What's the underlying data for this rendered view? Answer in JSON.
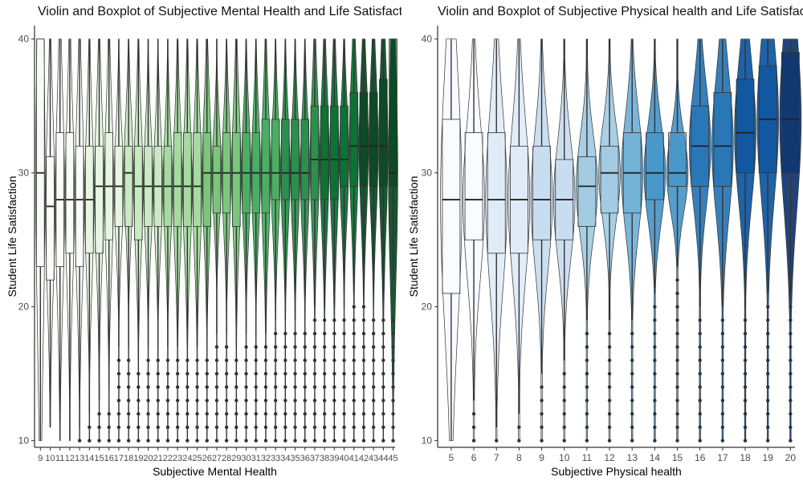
{
  "chart_data": [
    {
      "type": "violin-boxplot",
      "title": "Violin and Boxplot of Subjective Mental Health and Life Satisfaction",
      "xlabel": "Subjective Mental Health",
      "ylabel": "Student Life Satisfaction",
      "ylim": [
        9.5,
        41
      ],
      "yticks": [
        10,
        20,
        30,
        40
      ],
      "grid": false,
      "legend": "none",
      "palette": "greens",
      "colors": [
        "#f7fcf5",
        "#e5f5e0",
        "#c7e9c0",
        "#a1d99b",
        "#74c476",
        "#41ab5d",
        "#238b45",
        "#006d2c",
        "#00441b"
      ],
      "categories": [
        "9",
        "10",
        "11",
        "12",
        "13",
        "14",
        "15",
        "16",
        "17",
        "18",
        "19",
        "20",
        "21",
        "22",
        "23",
        "24",
        "25",
        "26",
        "27",
        "28",
        "29",
        "30",
        "31",
        "32",
        "33",
        "34",
        "35",
        "36",
        "37",
        "38",
        "39",
        "40",
        "41",
        "42",
        "43",
        "44",
        "45"
      ],
      "boxes": [
        {
          "q1": 23,
          "median": 30,
          "q3": 40,
          "lo": 10,
          "hi": 40,
          "outliers": []
        },
        {
          "q1": 22,
          "median": 27.5,
          "q3": 31.2,
          "lo": 11,
          "hi": 40,
          "outliers": []
        },
        {
          "q1": 23,
          "median": 28,
          "q3": 33,
          "lo": 10,
          "hi": 40,
          "outliers": []
        },
        {
          "q1": 24,
          "median": 28,
          "q3": 33,
          "lo": 10,
          "hi": 40,
          "outliers": []
        },
        {
          "q1": 23,
          "median": 28,
          "q3": 32,
          "lo": 11,
          "hi": 40,
          "outliers": [
            10
          ]
        },
        {
          "q1": 24,
          "median": 28,
          "q3": 32,
          "lo": 12,
          "hi": 40,
          "outliers": [
            10,
            11
          ]
        },
        {
          "q1": 24,
          "median": 29,
          "q3": 32,
          "lo": 13,
          "hi": 40,
          "outliers": [
            10,
            11,
            12
          ]
        },
        {
          "q1": 25,
          "median": 29,
          "q3": 33,
          "lo": 14,
          "hi": 40,
          "outliers": [
            10,
            11,
            12
          ]
        },
        {
          "q1": 26,
          "median": 29,
          "q3": 32,
          "lo": 17,
          "hi": 40,
          "outliers": [
            10,
            11,
            12,
            13,
            14,
            15,
            16
          ]
        },
        {
          "q1": 26,
          "median": 30,
          "q3": 32,
          "lo": 17,
          "hi": 40,
          "outliers": [
            10,
            11,
            12,
            13,
            14,
            15,
            16
          ]
        },
        {
          "q1": 25,
          "median": 29,
          "q3": 32,
          "lo": 16,
          "hi": 40,
          "outliers": [
            10,
            11,
            12,
            13,
            14,
            15
          ]
        },
        {
          "q1": 26,
          "median": 29,
          "q3": 32,
          "lo": 17,
          "hi": 40,
          "outliers": [
            10,
            11,
            12,
            13,
            14,
            15,
            16
          ]
        },
        {
          "q1": 26,
          "median": 29,
          "q3": 32,
          "lo": 17,
          "hi": 40,
          "outliers": [
            10,
            11,
            12,
            13,
            14,
            15,
            16
          ]
        },
        {
          "q1": 26,
          "median": 29,
          "q3": 32,
          "lo": 17,
          "hi": 40,
          "outliers": [
            10,
            11,
            12,
            13,
            14,
            15,
            16
          ]
        },
        {
          "q1": 26,
          "median": 29,
          "q3": 33,
          "lo": 17,
          "hi": 40,
          "outliers": [
            10,
            11,
            12,
            13,
            14,
            15,
            16
          ]
        },
        {
          "q1": 26,
          "median": 29,
          "q3": 33,
          "lo": 17,
          "hi": 40,
          "outliers": [
            10,
            11,
            12,
            13,
            14,
            15,
            16
          ]
        },
        {
          "q1": 26,
          "median": 29,
          "q3": 33,
          "lo": 17,
          "hi": 40,
          "outliers": [
            10,
            11,
            12,
            13,
            14,
            15,
            16
          ]
        },
        {
          "q1": 26,
          "median": 30,
          "q3": 33,
          "lo": 17,
          "hi": 40,
          "outliers": [
            10,
            11,
            12,
            13,
            14,
            15,
            16
          ]
        },
        {
          "q1": 27,
          "median": 30,
          "q3": 32,
          "lo": 18,
          "hi": 40,
          "outliers": [
            10,
            11,
            12,
            13,
            14,
            15,
            16,
            17
          ]
        },
        {
          "q1": 27,
          "median": 30,
          "q3": 33,
          "lo": 18,
          "hi": 40,
          "outliers": [
            10,
            11,
            12,
            13,
            14,
            15,
            16,
            17
          ]
        },
        {
          "q1": 26,
          "median": 30,
          "q3": 33,
          "lo": 17,
          "hi": 40,
          "outliers": [
            10,
            11,
            12,
            13,
            14,
            15,
            16
          ]
        },
        {
          "q1": 27,
          "median": 30,
          "q3": 33,
          "lo": 18,
          "hi": 40,
          "outliers": [
            10,
            11,
            12,
            13,
            14,
            15,
            16,
            17
          ]
        },
        {
          "q1": 27,
          "median": 30,
          "q3": 33,
          "lo": 18,
          "hi": 40,
          "outliers": [
            10,
            11,
            12,
            13,
            14,
            15,
            16,
            17
          ]
        },
        {
          "q1": 27,
          "median": 30,
          "q3": 34,
          "lo": 18,
          "hi": 40,
          "outliers": [
            10,
            11,
            12,
            13,
            14,
            15,
            16,
            17
          ]
        },
        {
          "q1": 28,
          "median": 30,
          "q3": 34,
          "lo": 19,
          "hi": 40,
          "outliers": [
            10,
            11,
            12,
            13,
            14,
            15,
            16,
            17,
            18
          ]
        },
        {
          "q1": 28,
          "median": 30,
          "q3": 34,
          "lo": 19,
          "hi": 40,
          "outliers": [
            10,
            11,
            12,
            13,
            14,
            15,
            16,
            17,
            18
          ]
        },
        {
          "q1": 28,
          "median": 30,
          "q3": 34,
          "lo": 19,
          "hi": 40,
          "outliers": [
            10,
            11,
            12,
            13,
            14,
            15,
            16,
            17,
            18
          ]
        },
        {
          "q1": 28,
          "median": 30,
          "q3": 34,
          "lo": 19,
          "hi": 40,
          "outliers": [
            10,
            11,
            12,
            13,
            14,
            15,
            16,
            17,
            18
          ]
        },
        {
          "q1": 28,
          "median": 31,
          "q3": 35,
          "lo": 20,
          "hi": 40,
          "outliers": [
            10,
            11,
            12,
            13,
            14,
            15,
            16,
            17,
            18,
            19
          ]
        },
        {
          "q1": 28,
          "median": 31,
          "q3": 35,
          "lo": 20,
          "hi": 40,
          "outliers": [
            10,
            11,
            12,
            13,
            14,
            15,
            16,
            17,
            18,
            19
          ]
        },
        {
          "q1": 28,
          "median": 31,
          "q3": 35,
          "lo": 20,
          "hi": 40,
          "outliers": [
            10,
            11,
            12,
            13,
            14,
            15,
            16,
            17,
            18,
            19
          ]
        },
        {
          "q1": 29,
          "median": 31,
          "q3": 35,
          "lo": 20,
          "hi": 40,
          "outliers": [
            10,
            11,
            12,
            13,
            14,
            15,
            16,
            17,
            18,
            19
          ]
        },
        {
          "q1": 29,
          "median": 32,
          "q3": 36,
          "lo": 21,
          "hi": 40,
          "outliers": [
            10,
            11,
            12,
            13,
            14,
            15,
            16,
            17,
            18,
            19,
            20
          ]
        },
        {
          "q1": 29,
          "median": 32,
          "q3": 36,
          "lo": 21,
          "hi": 40,
          "outliers": [
            10,
            11,
            12,
            13,
            14,
            15,
            16,
            17,
            18,
            19,
            20
          ]
        },
        {
          "q1": 29,
          "median": 32,
          "q3": 36,
          "lo": 21,
          "hi": 40,
          "outliers": [
            10,
            11,
            12,
            13,
            14,
            15,
            16,
            17,
            18,
            19
          ]
        },
        {
          "q1": 29,
          "median": 32,
          "q3": 37,
          "lo": 21,
          "hi": 40,
          "outliers": [
            10,
            11,
            12,
            13,
            14,
            15,
            16,
            17,
            18,
            19
          ]
        },
        {
          "q1": 29,
          "median": 30,
          "q3": 40,
          "lo": 22,
          "hi": 40,
          "outliers": [
            10,
            11,
            12,
            13,
            14,
            15,
            16,
            17,
            18,
            19
          ]
        }
      ]
    },
    {
      "type": "violin-boxplot",
      "title": "Violin and Boxplot of Subjective Physical health and Life Satisfaction",
      "xlabel": "Subjective Physical health",
      "ylabel": "Student Life Satisfaction",
      "ylim": [
        9.5,
        41
      ],
      "yticks": [
        10,
        20,
        30,
        40
      ],
      "grid": false,
      "legend": "none",
      "palette": "blues",
      "colors": [
        "#f7fbff",
        "#deebf7",
        "#c6dbef",
        "#9ecae1",
        "#6baed6",
        "#4292c6",
        "#2171b5",
        "#08519c",
        "#08306b"
      ],
      "categories": [
        "5",
        "6",
        "7",
        "8",
        "9",
        "10",
        "11",
        "12",
        "13",
        "14",
        "15",
        "16",
        "17",
        "18",
        "19",
        "20"
      ],
      "boxes": [
        {
          "q1": 21,
          "median": 28,
          "q3": 34,
          "lo": 10,
          "hi": 40,
          "outliers": []
        },
        {
          "q1": 25,
          "median": 28,
          "q3": 33,
          "lo": 13,
          "hi": 40,
          "outliers": [
            10,
            11,
            12
          ]
        },
        {
          "q1": 24,
          "median": 28,
          "q3": 33,
          "lo": 11,
          "hi": 40,
          "outliers": [
            10
          ]
        },
        {
          "q1": 24,
          "median": 28,
          "q3": 32,
          "lo": 12,
          "hi": 40,
          "outliers": [
            10,
            11
          ]
        },
        {
          "q1": 25,
          "median": 28,
          "q3": 32,
          "lo": 15,
          "hi": 40,
          "outliers": [
            10,
            11,
            12,
            13,
            14
          ]
        },
        {
          "q1": 25,
          "median": 28,
          "q3": 31,
          "lo": 16,
          "hi": 40,
          "outliers": [
            10,
            11,
            12,
            13,
            14,
            15
          ]
        },
        {
          "q1": 26,
          "median": 29,
          "q3": 31.2,
          "lo": 19,
          "hi": 40,
          "outliers": [
            10,
            11,
            12,
            13,
            14,
            15,
            16,
            17,
            18
          ]
        },
        {
          "q1": 27,
          "median": 30,
          "q3": 32,
          "lo": 19,
          "hi": 40,
          "outliers": [
            10,
            11,
            12,
            13,
            14,
            15,
            16,
            17,
            18
          ]
        },
        {
          "q1": 27,
          "median": 30,
          "q3": 33,
          "lo": 19,
          "hi": 40,
          "outliers": [
            10,
            11,
            12,
            13,
            14,
            15,
            16,
            17,
            18
          ]
        },
        {
          "q1": 28,
          "median": 30,
          "q3": 33,
          "lo": 21,
          "hi": 40,
          "outliers": [
            10,
            11,
            12,
            13,
            14,
            15,
            16,
            17,
            18,
            19,
            20
          ]
        },
        {
          "q1": 29,
          "median": 30,
          "q3": 33,
          "lo": 23,
          "hi": 40,
          "outliers": [
            10,
            11,
            12,
            13,
            14,
            15,
            16,
            17,
            18,
            19,
            20,
            21,
            22
          ]
        },
        {
          "q1": 29,
          "median": 32,
          "q3": 35,
          "lo": 20,
          "hi": 40,
          "outliers": [
            10,
            11,
            12,
            13,
            14,
            15,
            16,
            17,
            18,
            19
          ]
        },
        {
          "q1": 29,
          "median": 32,
          "q3": 36,
          "lo": 20,
          "hi": 40,
          "outliers": [
            10,
            11,
            12,
            13,
            14,
            15,
            16,
            17,
            18,
            19
          ]
        },
        {
          "q1": 30,
          "median": 33,
          "q3": 37,
          "lo": 20,
          "hi": 40,
          "outliers": [
            10,
            11,
            12,
            13,
            14,
            15,
            16,
            17,
            18,
            19
          ]
        },
        {
          "q1": 30,
          "median": 34,
          "q3": 38,
          "lo": 21,
          "hi": 40,
          "outliers": [
            10,
            11,
            12,
            13,
            14,
            15,
            16,
            17,
            18,
            19,
            20
          ]
        },
        {
          "q1": 30,
          "median": 34,
          "q3": 39,
          "lo": 21,
          "hi": 40,
          "outliers": [
            10,
            11,
            12,
            13,
            14,
            15,
            16,
            17,
            18,
            19,
            20
          ]
        }
      ]
    }
  ]
}
